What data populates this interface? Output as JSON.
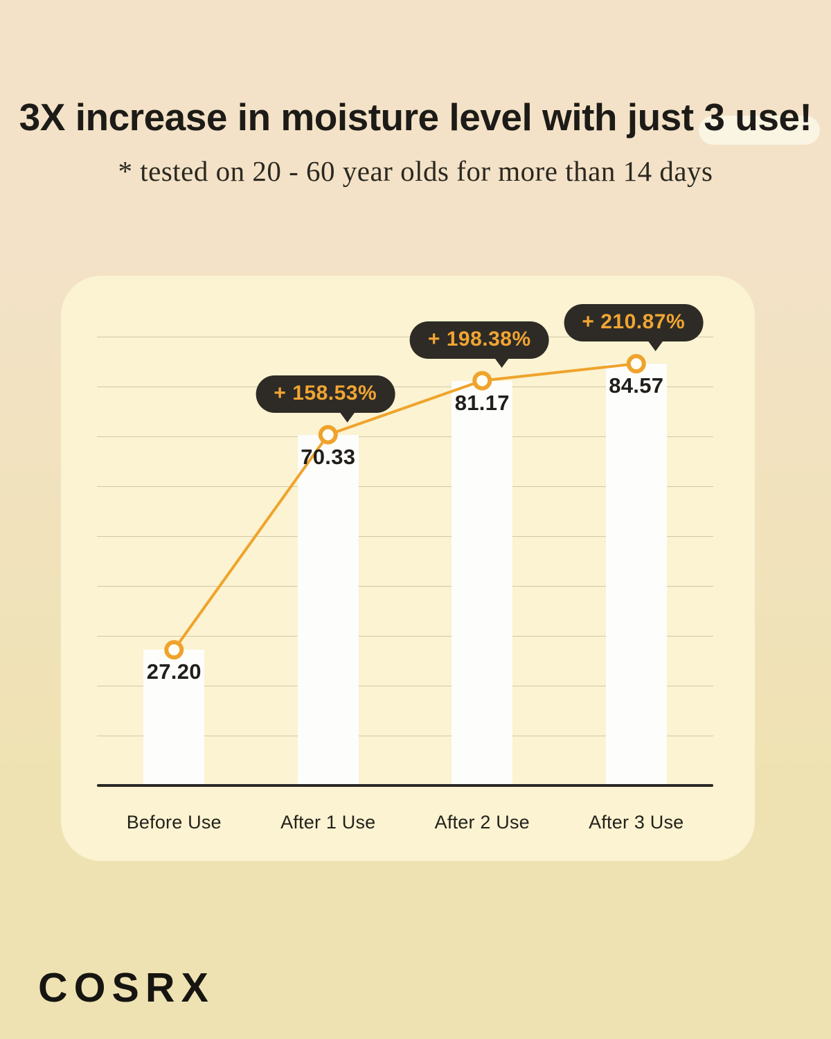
{
  "header": {
    "title_main": "3X increase in moisture level with just ",
    "title_highlight": "3 use!",
    "subtitle": "* tested on 20 - 60 year olds for more than 14 days"
  },
  "footer": {
    "brand": "COSRX"
  },
  "colors": {
    "background_top": "#F3E2C7",
    "background_bottom": "#EFE2B2",
    "panel": "#FBF3D1",
    "accent_orange": "#EFA32C",
    "tooltip_background": "#2E2B26",
    "tooltip_text": "#F2A532",
    "ink": "#1D1B17",
    "highlight_pill": "#FAF4E3",
    "bar_white": "#FDFDFC"
  },
  "chart_data": {
    "type": "bar",
    "title": "3X increase in moisture level with just 3 use!",
    "xlabel": "",
    "ylabel": "",
    "categories": [
      "Before Use",
      "After 1 Use",
      "After 2 Use",
      "After 3 Use"
    ],
    "values": [
      27.2,
      70.33,
      81.17,
      84.57
    ],
    "value_labels": [
      "27.20",
      "70.33",
      "81.17",
      "84.57"
    ],
    "percent_badges": [
      null,
      "+ 158.53%",
      "+ 198.38%",
      "+ 210.87%"
    ],
    "line_overlay": true,
    "marker": "open-circle",
    "ylim": [
      0,
      100
    ],
    "gridline_step": 10,
    "grid": "horizontal",
    "legend": "none"
  }
}
